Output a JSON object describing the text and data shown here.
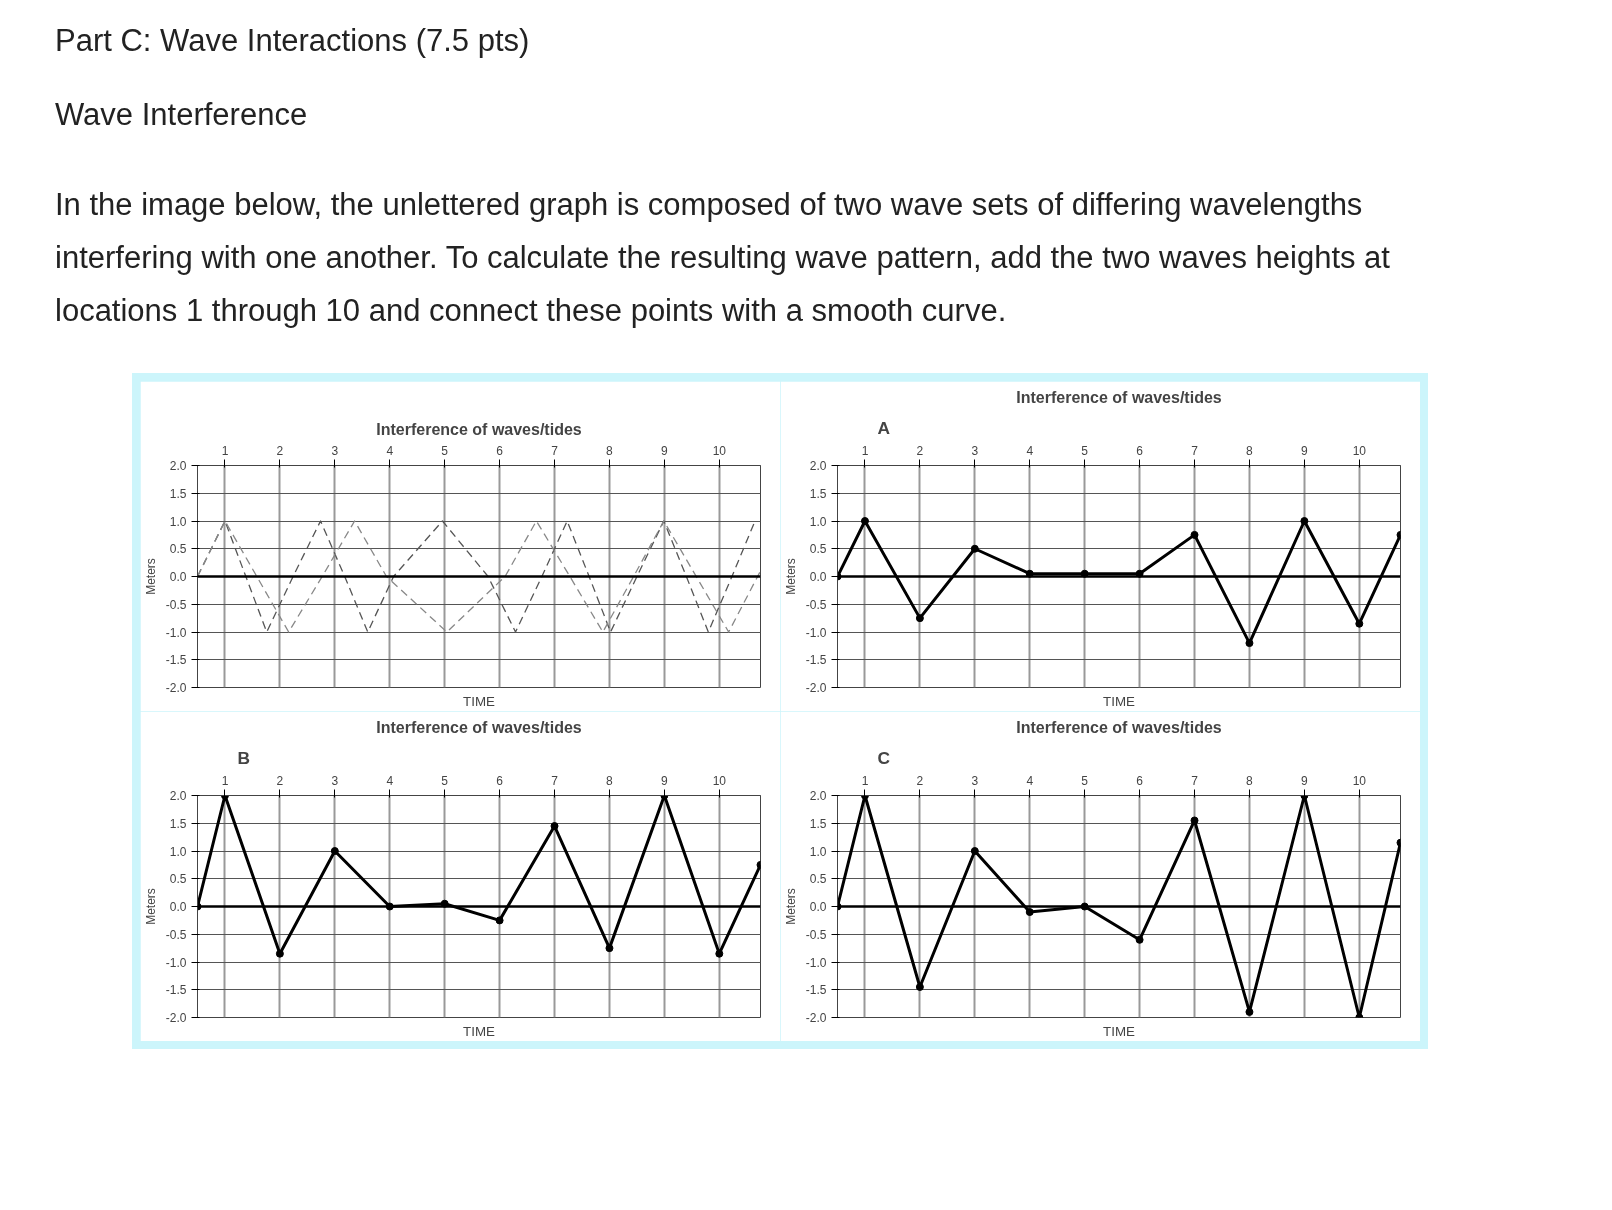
{
  "chart_data": [
    {
      "type": "other",
      "title": "Part C: Wave Interactions (7.5 pts)",
      "subtitle": "Wave Interference",
      "annotations": [
        "In the image below, the unlettered graph is composed of two wave sets of differing wavelengths interfering with one another. To calculate the resulting wave pattern, add the two waves heights at locations 1 through 10 and connect these points with a smooth curve."
      ]
    },
    {
      "type": "line",
      "title": "Interference of waves/tides",
      "xlabel": "TIME",
      "ylabel": "Meters",
      "xlim": [
        0.5,
        10.75
      ],
      "xticks": [
        1,
        2,
        3,
        4,
        5,
        6,
        7,
        8,
        9,
        10
      ],
      "ylim": [
        -2,
        2
      ],
      "yticks": [
        {
          "value": -2,
          "label": "-2.0"
        },
        {
          "value": -1.5,
          "label": "-1.5"
        },
        {
          "value": -1,
          "label": "-1.0"
        },
        {
          "value": -0.5,
          "label": "-0.5"
        },
        {
          "value": 0,
          "label": "0.0"
        },
        {
          "value": 0.5,
          "label": "0.5"
        },
        {
          "value": 1,
          "label": "1.0"
        },
        {
          "value": 1.5,
          "label": "1.5"
        },
        {
          "value": 2,
          "label": "2.0"
        }
      ],
      "grid": true,
      "marker": "none",
      "line_style": "dashed",
      "ref_lines": [
        {
          "axis": "y",
          "value": 0
        }
      ],
      "series": [
        {
          "color": "#555555",
          "x": [
            0.5,
            1,
            1.38,
            1.76,
            2.24,
            2.74,
            3.18,
            3.6,
            4.07,
            4.96,
            5.79,
            6.29,
            6.77,
            7.23,
            7.63,
            8.02,
            8.5,
            8.99,
            9.4,
            9.8,
            10.23,
            10.65
          ],
          "values": [
            0,
            1,
            0,
            -1,
            0,
            1,
            0,
            -1,
            0,
            1,
            0,
            -1,
            0,
            1,
            0,
            -1,
            0,
            1,
            0,
            -1,
            0,
            1
          ]
        },
        {
          "color": "#888888",
          "x": [
            0.5,
            1,
            1.58,
            2.16,
            2.77,
            3.36,
            3.94,
            5.04,
            6.1,
            6.67,
            7.28,
            7.88,
            8.44,
            8.99,
            9.58,
            10.17,
            10.75
          ],
          "values": [
            0,
            1,
            0,
            -1,
            0,
            1,
            0,
            -1,
            0,
            1,
            0,
            -1,
            0,
            1,
            0,
            -1,
            0.1
          ]
        }
      ]
    },
    {
      "type": "line",
      "title": "Interference of waves/tides",
      "annotations": [
        "A"
      ],
      "xlabel": "TIME",
      "ylabel": "Meters",
      "xlim": [
        0.5,
        10.75
      ],
      "xticks": [
        1,
        2,
        3,
        4,
        5,
        6,
        7,
        8,
        9,
        10
      ],
      "ylim": [
        -2,
        2
      ],
      "yticks": [
        {
          "value": -2,
          "label": "-2.0"
        },
        {
          "value": -1.5,
          "label": "-1.5"
        },
        {
          "value": -1,
          "label": "-1.0"
        },
        {
          "value": -0.5,
          "label": "-0.5"
        },
        {
          "value": 0,
          "label": "0.0"
        },
        {
          "value": 0.5,
          "label": "0.5"
        },
        {
          "value": 1,
          "label": "1.0"
        },
        {
          "value": 1.5,
          "label": "1.5"
        },
        {
          "value": 2,
          "label": "2.0"
        }
      ],
      "grid": true,
      "marker": "circle",
      "line_style": "solid",
      "ref_lines": [
        {
          "axis": "y",
          "value": 0
        }
      ],
      "series": [
        {
          "color": "#000000",
          "x": [
            0.5,
            1,
            2,
            3,
            4,
            5,
            6,
            7,
            8,
            9,
            10,
            10.75
          ],
          "values": [
            0,
            1.0,
            -0.75,
            0.5,
            0.05,
            0.05,
            0.05,
            0.75,
            -1.2,
            1.0,
            -0.85,
            0.75
          ]
        }
      ]
    },
    {
      "type": "line",
      "title": "Interference of waves/tides",
      "annotations": [
        "B"
      ],
      "xlabel": "TIME",
      "ylabel": "Meters",
      "xlim": [
        0.5,
        10.75
      ],
      "xticks": [
        1,
        2,
        3,
        4,
        5,
        6,
        7,
        8,
        9,
        10
      ],
      "ylim": [
        -2,
        2
      ],
      "yticks": [
        {
          "value": -2,
          "label": "-2.0"
        },
        {
          "value": -1.5,
          "label": "-1.5"
        },
        {
          "value": -1,
          "label": "-1.0"
        },
        {
          "value": -0.5,
          "label": "-0.5"
        },
        {
          "value": 0,
          "label": "0.0"
        },
        {
          "value": 0.5,
          "label": "0.5"
        },
        {
          "value": 1,
          "label": "1.0"
        },
        {
          "value": 1.5,
          "label": "1.5"
        },
        {
          "value": 2,
          "label": "2.0"
        }
      ],
      "grid": true,
      "marker": "circle",
      "line_style": "solid",
      "ref_lines": [
        {
          "axis": "y",
          "value": 0
        }
      ],
      "series": [
        {
          "color": "#000000",
          "x": [
            0.5,
            1,
            2,
            3,
            4,
            5,
            6,
            7,
            8,
            9,
            10,
            10.75
          ],
          "values": [
            0,
            2.0,
            -0.85,
            1.0,
            0.0,
            0.05,
            -0.25,
            1.45,
            -0.75,
            2.0,
            -0.85,
            0.75
          ]
        }
      ]
    },
    {
      "type": "line",
      "title": "Interference of waves/tides",
      "annotations": [
        "C"
      ],
      "xlabel": "TIME",
      "ylabel": "Meters",
      "xlim": [
        0.5,
        10.75
      ],
      "xticks": [
        1,
        2,
        3,
        4,
        5,
        6,
        7,
        8,
        9,
        10
      ],
      "ylim": [
        -2,
        2
      ],
      "yticks": [
        {
          "value": -2,
          "label": "-2.0"
        },
        {
          "value": -1.5,
          "label": "-1.5"
        },
        {
          "value": -1,
          "label": "-1.0"
        },
        {
          "value": -0.5,
          "label": "-0.5"
        },
        {
          "value": 0,
          "label": "0.0"
        },
        {
          "value": 0.5,
          "label": "0.5"
        },
        {
          "value": 1,
          "label": "1.0"
        },
        {
          "value": 1.5,
          "label": "1.5"
        },
        {
          "value": 2,
          "label": "2.0"
        }
      ],
      "grid": true,
      "marker": "circle",
      "line_style": "solid",
      "ref_lines": [
        {
          "axis": "y",
          "value": 0
        }
      ],
      "series": [
        {
          "color": "#000000",
          "x": [
            0.5,
            1,
            2,
            3,
            4,
            5,
            6,
            7,
            8,
            9,
            10,
            10.75
          ],
          "values": [
            0,
            2.0,
            -1.45,
            1.0,
            -0.1,
            0.0,
            -0.6,
            1.55,
            -1.9,
            2.0,
            -2.0,
            1.15
          ]
        }
      ]
    }
  ]
}
